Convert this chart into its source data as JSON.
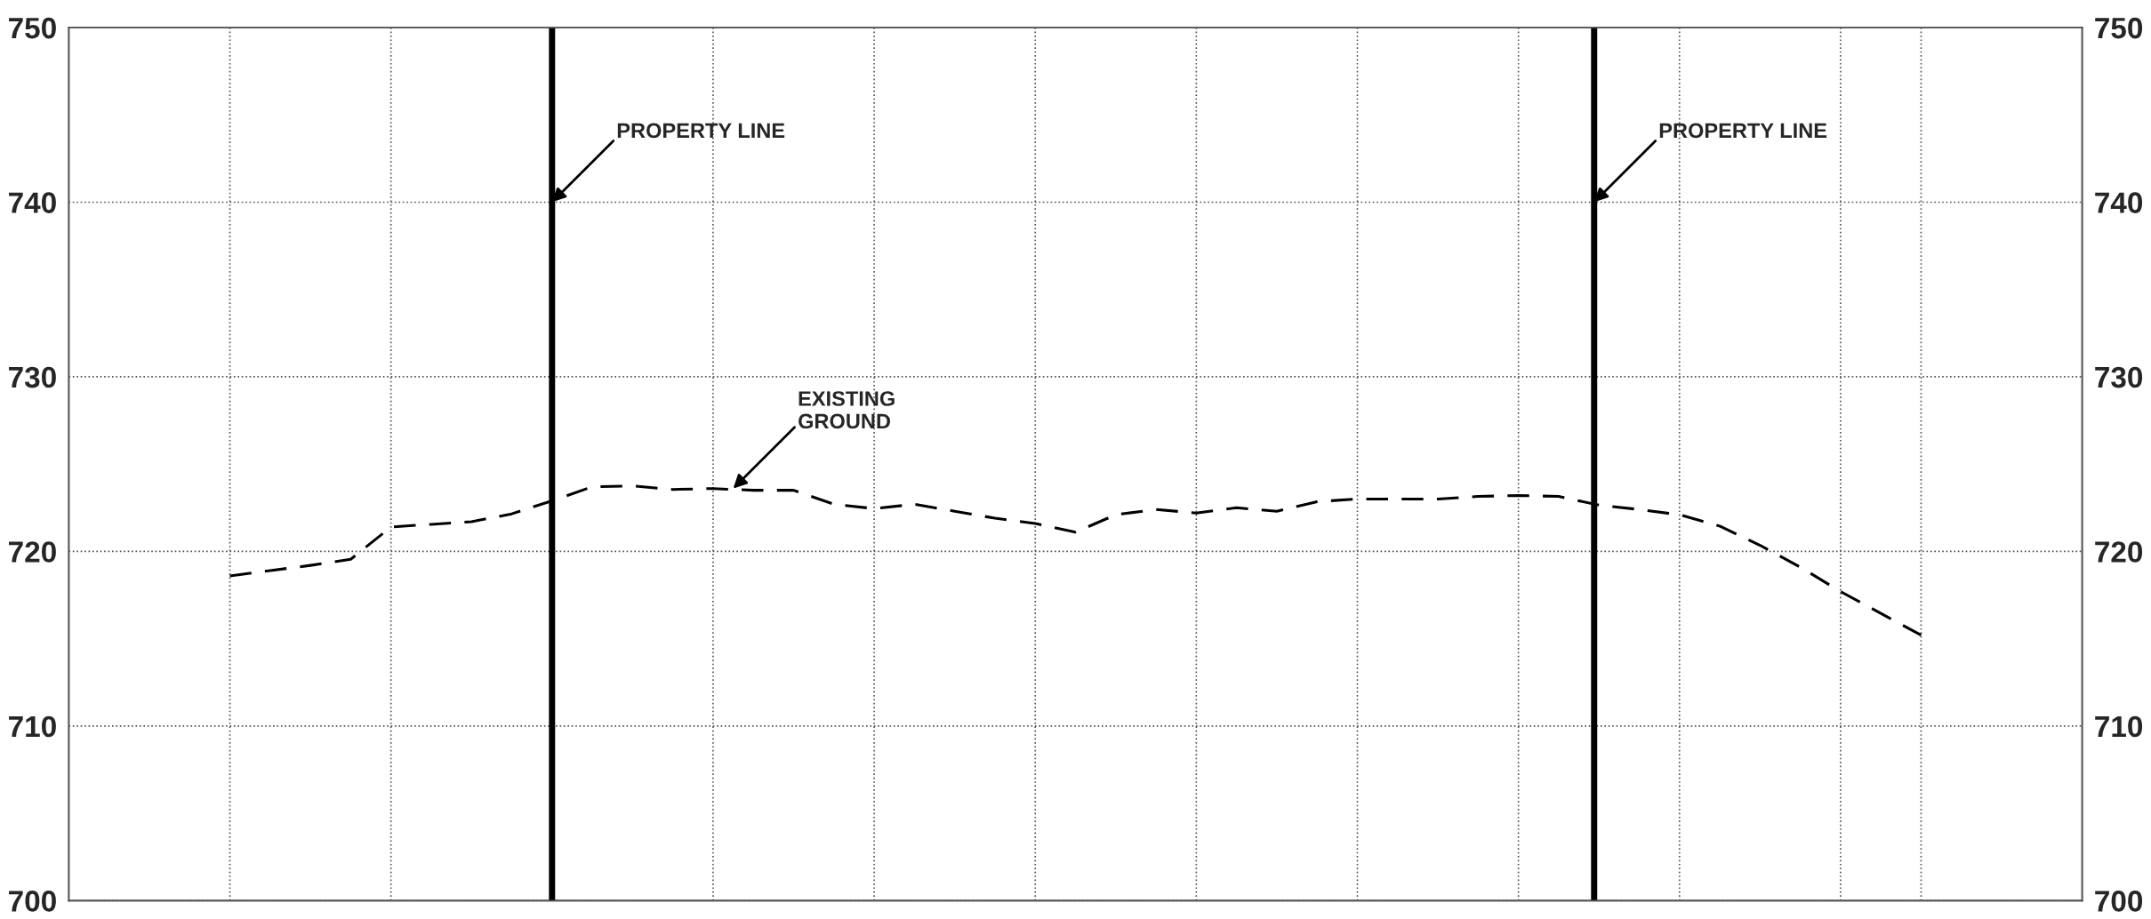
{
  "chart_data": {
    "type": "line",
    "categories": [
      null,
      null,
      null,
      null,
      null,
      null,
      null,
      null,
      null,
      null,
      null,
      null,
      null,
      null,
      null,
      null,
      null,
      null,
      null,
      null,
      null,
      null,
      null,
      null,
      null,
      null,
      null,
      null,
      null,
      null,
      null,
      null,
      null,
      null,
      null,
      null,
      null,
      null,
      null,
      null,
      null,
      null,
      null
    ],
    "series": [
      {
        "color": "#000000",
        "line_style": "dashed",
        "values": [
          718.6,
          718.9,
          719.2,
          719.55,
          721.4,
          721.55,
          721.7,
          722.15,
          722.9,
          723.7,
          723.75,
          723.55,
          723.6,
          723.5,
          723.5,
          722.7,
          722.45,
          722.7,
          722.3,
          721.9,
          721.6,
          721.1,
          722.1,
          722.4,
          722.2,
          722.5,
          722.3,
          722.85,
          723.0,
          723.0,
          723.0,
          723.15,
          723.2,
          723.15,
          722.65,
          722.4,
          722.1,
          721.45,
          720.35,
          719.1,
          717.7,
          716.45,
          715.2
        ]
      }
    ],
    "ylim": [
      700,
      750
    ],
    "yticks": [
      700,
      710,
      720,
      730,
      740,
      750
    ],
    "y2lim": [
      700,
      750
    ],
    "y2ticks": [
      700,
      710,
      720,
      730,
      740,
      750
    ],
    "tick_labels": "y",
    "grid": true,
    "marker": "none",
    "legend": false,
    "annotations": [
      "PROPERTY LINE",
      "PROPERTY LINE",
      "EXISTING\nGROUND"
    ]
  }
}
